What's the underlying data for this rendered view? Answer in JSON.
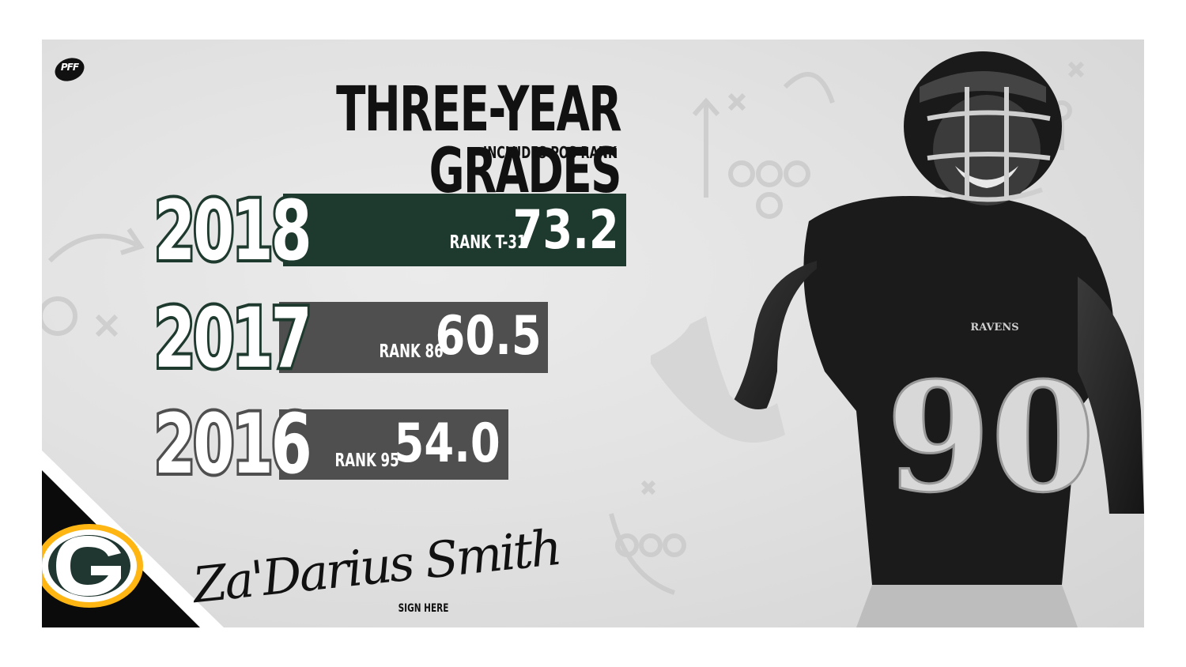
{
  "brand": {
    "logo_text": "PFF"
  },
  "title": "THREE-YEAR GRADES",
  "subtitle": "INCLUDES POS RANK",
  "grades": [
    {
      "year": "2018",
      "rank": "RANK T-31",
      "grade": "73.2",
      "color": "#1e3a2e"
    },
    {
      "year": "2017",
      "rank": "RANK 86",
      "grade": "60.5",
      "color": "#4f4f4f"
    },
    {
      "year": "2016",
      "rank": "RANK 95",
      "grade": "54.0",
      "color": "#4f4f4f"
    }
  ],
  "player": {
    "signature": "Za'Darius Smith",
    "sign_label": "SIGN HERE",
    "jersey_number": "90",
    "jersey_team": "RAVENS"
  },
  "team_logo": {
    "letter": "G",
    "colors": {
      "green": "#203731",
      "gold": "#ffb612"
    }
  }
}
